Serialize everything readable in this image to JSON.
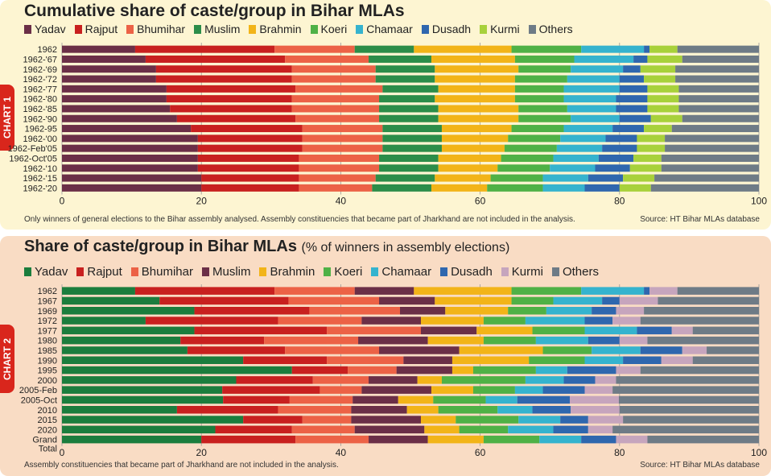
{
  "colors": {
    "Yadav": "#6b2f47",
    "Rajput": "#c8201f",
    "Bhumihar": "#ec6246",
    "Muslim": "#2c8d49",
    "Brahmin": "#f2b418",
    "Koeri": "#4fb146",
    "Chamaar": "#35b3ce",
    "Dusadh": "#2f67ae",
    "Kurmi": "#a8d13b",
    "Others": "#6e7b86",
    "Kurmi2": "#c6a5bd",
    "Yadav2": "#1b7d3d",
    "Muslim2": "#6b2f47"
  },
  "chart_data": [
    {
      "type": "bar",
      "orientation": "horizontal",
      "stacked": true,
      "chart_label": "CHART 1",
      "title": "Cumulative share of caste/group in Bihar MLAs",
      "categories": [
        "1962",
        "1962-'67",
        "1962-'69",
        "1962-'72",
        "1962-'77",
        "1962-'80",
        "1962-'85",
        "1962-'90",
        "1962-95",
        "1962-'00",
        "1962-Feb'05",
        "1962-Oct'05",
        "1962-'10",
        "1962-'15",
        "1962-'20"
      ],
      "category_labels": [
        [
          "1962"
        ],
        [
          "1962-'67"
        ],
        [
          "1962-'69"
        ],
        [
          "1962-'72"
        ],
        [
          "1962-'77"
        ],
        [
          "1962-'80"
        ],
        [
          "1962-'85"
        ],
        [
          "1962-'90"
        ],
        [
          "1962-95"
        ],
        [
          "1962-'00"
        ],
        [
          "1962-Feb'05"
        ],
        [
          "1962-Oct'05"
        ],
        [
          "1962-'10"
        ],
        [
          "1962-'15"
        ],
        [
          "1962-'20"
        ]
      ],
      "legend": [
        {
          "name": "Yadav",
          "color_key": "Yadav"
        },
        {
          "name": "Rajput",
          "color_key": "Rajput"
        },
        {
          "name": "Bhumihar",
          "color_key": "Bhumihar"
        },
        {
          "name": "Muslim",
          "color_key": "Muslim"
        },
        {
          "name": "Brahmin",
          "color_key": "Brahmin"
        },
        {
          "name": "Koeri",
          "color_key": "Koeri"
        },
        {
          "name": "Chamaar",
          "color_key": "Chamaar"
        },
        {
          "name": "Dusadh",
          "color_key": "Dusadh"
        },
        {
          "name": "Kurmi",
          "color_key": "Kurmi"
        },
        {
          "name": "Others",
          "color_key": "Others"
        }
      ],
      "series": [
        {
          "name": "Yadav",
          "color_key": "Yadav",
          "values": [
            10.5,
            12,
            13.5,
            13.5,
            15,
            15,
            15.5,
            16.5,
            18.5,
            19.5,
            19.5,
            19.5,
            19.5,
            20,
            20
          ]
        },
        {
          "name": "Rajput",
          "color_key": "Rajput",
          "values": [
            20,
            20,
            19.5,
            19.5,
            18.5,
            18,
            17.5,
            17,
            16,
            15,
            15,
            14.5,
            14.5,
            14,
            14
          ]
        },
        {
          "name": "Bhumihar",
          "color_key": "Bhumihar",
          "values": [
            11.5,
            12,
            12,
            12,
            12.5,
            12.5,
            12.5,
            12,
            11.5,
            11.5,
            11.5,
            11.5,
            11.5,
            11,
            10.5
          ]
        },
        {
          "name": "Muslim",
          "color_key": "Muslim",
          "values": [
            8.5,
            9,
            8.5,
            8.5,
            8,
            8,
            8.5,
            8.5,
            8.5,
            8.5,
            8.5,
            8.5,
            8.5,
            8.5,
            8.5
          ]
        },
        {
          "name": "Brahmin",
          "color_key": "Brahmin",
          "values": [
            14,
            12,
            12,
            11.5,
            11,
            11.5,
            11.5,
            11.5,
            10,
            9.5,
            9,
            9,
            8.5,
            8,
            8
          ]
        },
        {
          "name": "Koeri",
          "color_key": "Koeri",
          "values": [
            10,
            8.5,
            7.5,
            7.5,
            7,
            7,
            7,
            7.5,
            7.5,
            7.5,
            7.5,
            7.5,
            7.5,
            7.5,
            8
          ]
        },
        {
          "name": "Chamaar",
          "color_key": "Chamaar",
          "values": [
            9,
            8.5,
            7.5,
            7.5,
            8,
            7.5,
            7,
            7,
            7,
            6.5,
            6.5,
            6.5,
            6.5,
            6.5,
            6
          ]
        },
        {
          "name": "Dusadh",
          "color_key": "Dusadh",
          "values": [
            0.8,
            2,
            2.5,
            3.5,
            4,
            4.5,
            4.5,
            4.5,
            4.5,
            4.5,
            5,
            5,
            5,
            5,
            5
          ]
        },
        {
          "name": "Kurmi",
          "color_key": "Kurmi",
          "values": [
            4,
            5,
            5,
            4.5,
            4.5,
            4.5,
            4.5,
            4.5,
            4,
            4,
            4,
            4,
            4.5,
            4.5,
            4.5
          ]
        },
        {
          "name": "Others",
          "color_key": "Others",
          "values": [
            11.7,
            11,
            12,
            12,
            11.5,
            11.5,
            11.5,
            11,
            12.5,
            13.5,
            13.5,
            14,
            14,
            15,
            15.5
          ]
        }
      ],
      "xlim": [
        0,
        100
      ],
      "xticks": [
        0,
        20,
        40,
        60,
        80,
        100
      ],
      "footnote": "Only winners of general elections to the Bihar assembly analysed. Assembly constituencies that became part of Jharkhand are not included in the analysis.",
      "source": "Source: HT Bihar MLAs database"
    },
    {
      "type": "bar",
      "orientation": "horizontal",
      "stacked": true,
      "chart_label": "CHART 2",
      "title": "Share of caste/group in Bihar MLAs",
      "subtitle": "(% of winners in assembly elections)",
      "categories": [
        "1962",
        "1967",
        "1969",
        "1972",
        "1977",
        "1980",
        "1985",
        "1990",
        "1995",
        "2000",
        "2005-Feb",
        "2005-Oct",
        "2010",
        "2015",
        "2020",
        "Grand Total"
      ],
      "category_labels": [
        [
          "1962"
        ],
        [
          "1967"
        ],
        [
          "1969"
        ],
        [
          "1972"
        ],
        [
          "1977"
        ],
        [
          "1980"
        ],
        [
          "1985"
        ],
        [
          "1990"
        ],
        [
          "1995"
        ],
        [
          "2000"
        ],
        [
          "2005-Feb"
        ],
        [
          "2005-Oct"
        ],
        [
          "2010"
        ],
        [
          "2015"
        ],
        [
          "2020"
        ],
        [
          "Grand",
          "Total"
        ]
      ],
      "legend": [
        {
          "name": "Yadav",
          "color_key": "Yadav2"
        },
        {
          "name": "Rajput",
          "color_key": "Rajput"
        },
        {
          "name": "Bhumihar",
          "color_key": "Bhumihar"
        },
        {
          "name": "Muslim",
          "color_key": "Muslim2"
        },
        {
          "name": "Brahmin",
          "color_key": "Brahmin"
        },
        {
          "name": "Koeri",
          "color_key": "Koeri"
        },
        {
          "name": "Chamaar",
          "color_key": "Chamaar"
        },
        {
          "name": "Dusadh",
          "color_key": "Dusadh"
        },
        {
          "name": "Kurmi",
          "color_key": "Kurmi2"
        },
        {
          "name": "Others",
          "color_key": "Others"
        }
      ],
      "series": [
        {
          "name": "Yadav",
          "color_key": "Yadav2",
          "values": [
            10.5,
            14,
            19,
            12,
            19,
            17,
            18,
            26,
            33,
            25,
            23,
            23,
            16.5,
            26,
            22,
            20
          ]
        },
        {
          "name": "Rajput",
          "color_key": "Rajput",
          "values": [
            20,
            18.5,
            16.5,
            19,
            19,
            12,
            14,
            12,
            8,
            11,
            14,
            9.5,
            14.5,
            8.5,
            11,
            13.5
          ]
        },
        {
          "name": "Bhumihar",
          "color_key": "Bhumihar",
          "values": [
            11.5,
            13,
            13,
            12,
            13.5,
            13.5,
            13.5,
            11,
            7,
            8,
            6,
            9,
            10.5,
            7,
            9,
            10.5
          ]
        },
        {
          "name": "Muslim",
          "color_key": "Muslim2",
          "values": [
            8.5,
            8,
            6.5,
            8.5,
            8,
            10,
            11.5,
            7,
            8,
            7,
            10,
            6.5,
            8,
            10,
            10,
            8.5
          ]
        },
        {
          "name": "Brahmin",
          "color_key": "Brahmin",
          "values": [
            14,
            11,
            9,
            9,
            8,
            8,
            12,
            11,
            3,
            3.5,
            6,
            5,
            4.5,
            5,
            5,
            8
          ]
        },
        {
          "name": "Koeri",
          "color_key": "Koeri",
          "values": [
            10,
            6,
            5.5,
            6,
            7.5,
            7.5,
            7,
            8,
            9,
            12,
            6,
            7.5,
            8.5,
            9,
            7,
            8
          ]
        },
        {
          "name": "Chamaar",
          "color_key": "Chamaar",
          "values": [
            9,
            7,
            6.5,
            8.5,
            7.5,
            7.5,
            7,
            5.5,
            4.5,
            5.5,
            4,
            4.5,
            5,
            6,
            6.5,
            6
          ]
        },
        {
          "name": "Dusadh",
          "color_key": "Dusadh",
          "values": [
            0.8,
            2.5,
            3.5,
            4,
            5,
            4.5,
            6,
            5.5,
            7,
            4.5,
            6,
            7.5,
            5.5,
            4,
            5,
            5
          ]
        },
        {
          "name": "Kurmi",
          "color_key": "Kurmi2",
          "values": [
            4,
            5.5,
            4,
            4,
            3,
            4,
            3.5,
            4.5,
            3.5,
            3,
            4,
            7,
            7,
            5,
            3.5,
            4.5
          ]
        },
        {
          "name": "Others",
          "color_key": "Others",
          "values": [
            11.7,
            14.5,
            16.5,
            17,
            9.5,
            16,
            7.5,
            9.5,
            17,
            20.5,
            21,
            20,
            20,
            19.5,
            21,
            16
          ]
        }
      ],
      "xlim": [
        0,
        100
      ],
      "xticks": [
        0,
        20,
        40,
        60,
        80,
        100
      ],
      "footnote": "Assembly constituencies that became part of Jharkhand are not included in the analysis.",
      "source": "Source: HT Bihar MLAs database"
    }
  ]
}
